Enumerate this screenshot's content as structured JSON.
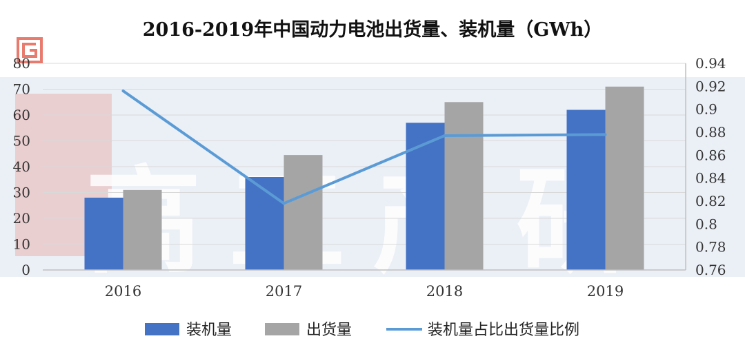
{
  "chart_data": {
    "type": "bar",
    "title": "2016-2019年中国动力电池出货量、装机量（GWh）",
    "categories": [
      "2016",
      "2017",
      "2018",
      "2019"
    ],
    "series": [
      {
        "name": "装机量",
        "kind": "bar",
        "axis": "left",
        "color": "#4472C4",
        "values": [
          28,
          36,
          57,
          62
        ]
      },
      {
        "name": "出货量",
        "kind": "bar",
        "axis": "left",
        "color": "#A5A5A5",
        "values": [
          31,
          44.5,
          65,
          71
        ]
      },
      {
        "name": "装机量占比出货量比例",
        "kind": "line",
        "axis": "right",
        "color": "#5B9BD5",
        "values": [
          0.916,
          0.818,
          0.877,
          0.878
        ]
      }
    ],
    "y_left": {
      "min": 0,
      "max": 80,
      "ticks": [
        "0",
        "10",
        "20",
        "30",
        "40",
        "50",
        "60",
        "70",
        "80"
      ]
    },
    "y_right": {
      "min": 0.76,
      "max": 0.94,
      "ticks": [
        "0.76",
        "0.78",
        "0.8",
        "0.82",
        "0.84",
        "0.86",
        "0.88",
        "0.9",
        "0.92",
        "0.94"
      ]
    },
    "grid": true,
    "legend_position": "bottom"
  },
  "watermark": {
    "text": "高工产研",
    "logo_color": "#e87a6e",
    "band_color": "#e4ebf4"
  }
}
